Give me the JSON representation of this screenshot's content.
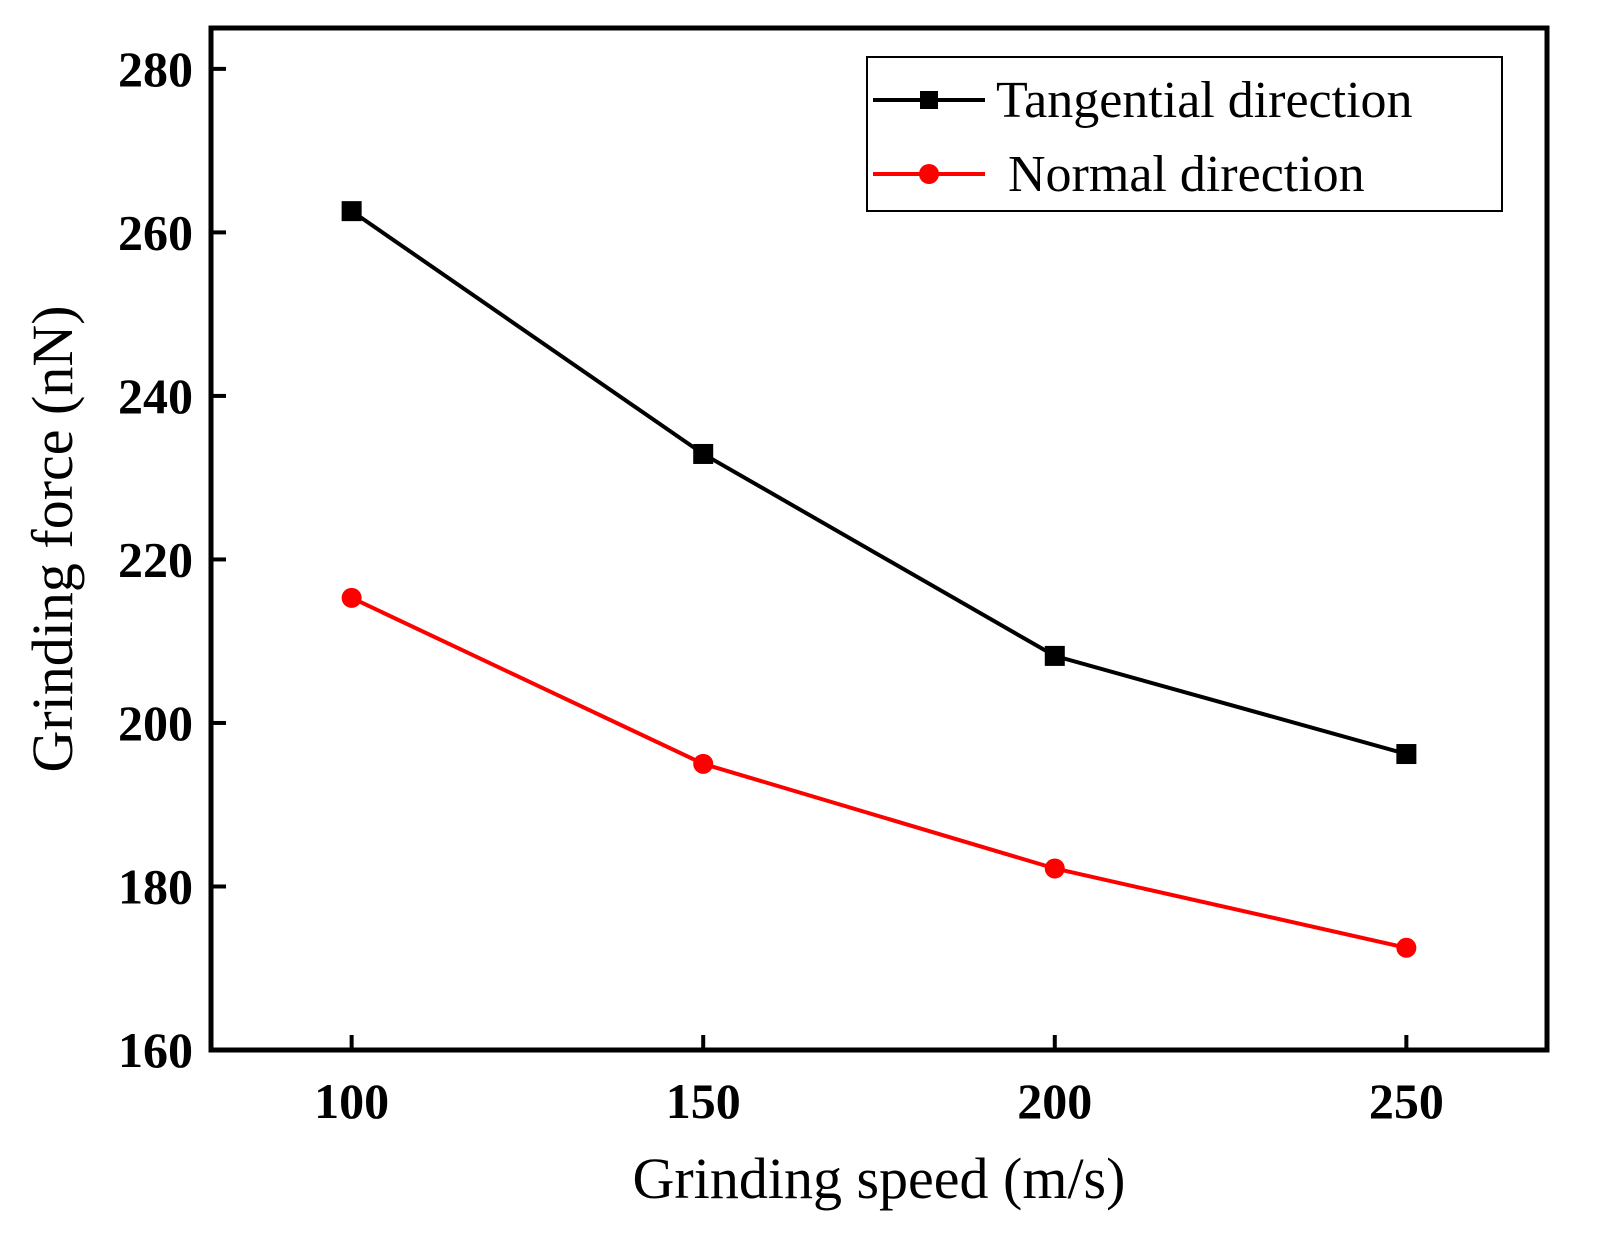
{
  "chart_data": {
    "type": "line",
    "title": "",
    "xlabel": "Grinding speed (m/s)",
    "ylabel": "Grinding force (nN)",
    "xlim": [
      80,
      270
    ],
    "ylim": [
      160,
      285
    ],
    "xticks": [
      100,
      150,
      200,
      250
    ],
    "yticks": [
      160,
      180,
      200,
      220,
      240,
      260,
      280
    ],
    "x": [
      100,
      150,
      200,
      250
    ],
    "grid": false,
    "legend_position": "top-right",
    "series": [
      {
        "name": "Tangential direction",
        "color": "#000000",
        "marker": "square",
        "values": [
          262.6,
          232.9,
          208.2,
          196.2
        ]
      },
      {
        "name": "Normal direction",
        "color": "#ff0000",
        "marker": "circle",
        "values": [
          215.3,
          195.0,
          182.2,
          172.5
        ]
      }
    ]
  }
}
